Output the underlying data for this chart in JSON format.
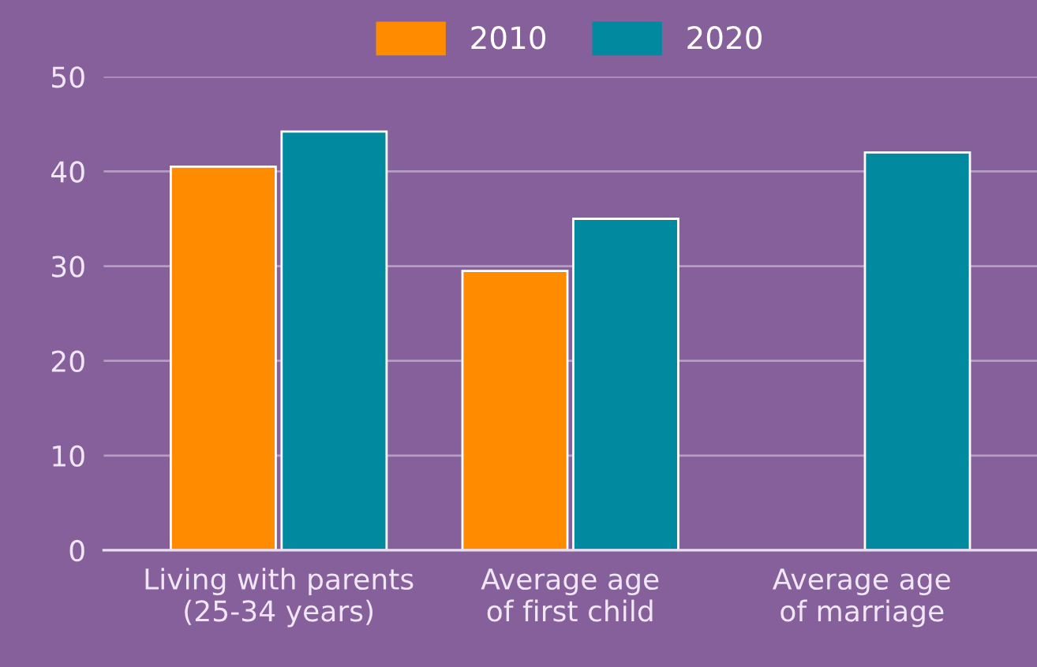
{
  "chart_data": {
    "type": "bar",
    "categories": [
      "Living with parents\n(25-34 years)",
      "Average age\nof first child",
      "Average age\nof marriage"
    ],
    "series": [
      {
        "name": "2010",
        "color": "#ff8c00",
        "values": [
          40.5,
          29.5,
          null
        ]
      },
      {
        "name": "2020",
        "color": "#00899f",
        "values": [
          44.2,
          35,
          42
        ]
      }
    ],
    "ylim": [
      0,
      50
    ],
    "yticks": [
      0,
      10,
      20,
      30,
      40,
      50
    ],
    "grid": "y",
    "legend": "top"
  }
}
